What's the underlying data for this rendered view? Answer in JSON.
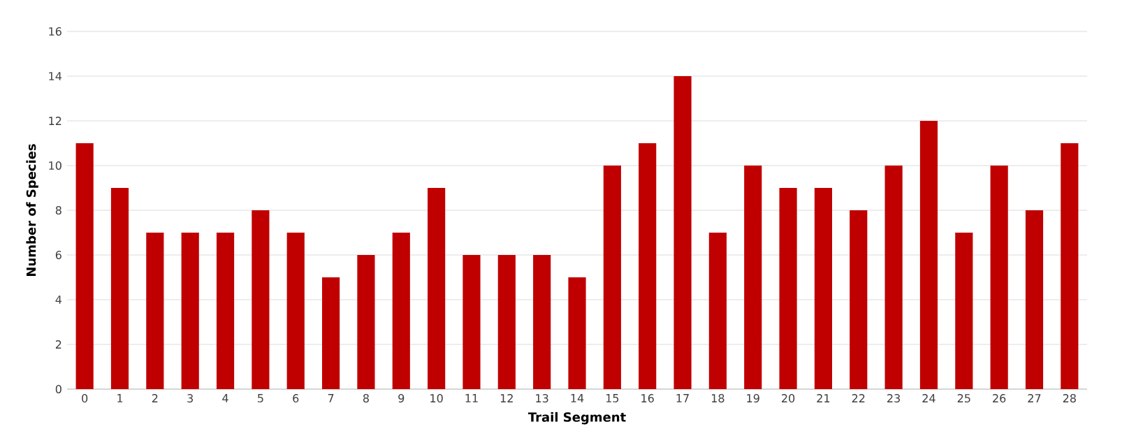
{
  "chart_data": {
    "type": "bar",
    "xlabel": "Trail Segment",
    "ylabel": "Number of Species",
    "categories": [
      "0",
      "1",
      "2",
      "3",
      "4",
      "5",
      "6",
      "7",
      "8",
      "9",
      "10",
      "11",
      "12",
      "13",
      "14",
      "15",
      "16",
      "17",
      "18",
      "19",
      "20",
      "21",
      "22",
      "23",
      "24",
      "25",
      "26",
      "27",
      "28"
    ],
    "values": [
      11,
      9,
      7,
      7,
      7,
      8,
      7,
      5,
      6,
      7,
      9,
      6,
      6,
      6,
      5,
      10,
      11,
      14,
      7,
      10,
      9,
      9,
      8,
      10,
      12,
      7,
      10,
      8,
      11
    ],
    "color": "#c00000",
    "ylim": [
      0,
      16
    ],
    "yticks": [
      0,
      2,
      4,
      6,
      8,
      10,
      12,
      14,
      16
    ],
    "grid": "y"
  }
}
